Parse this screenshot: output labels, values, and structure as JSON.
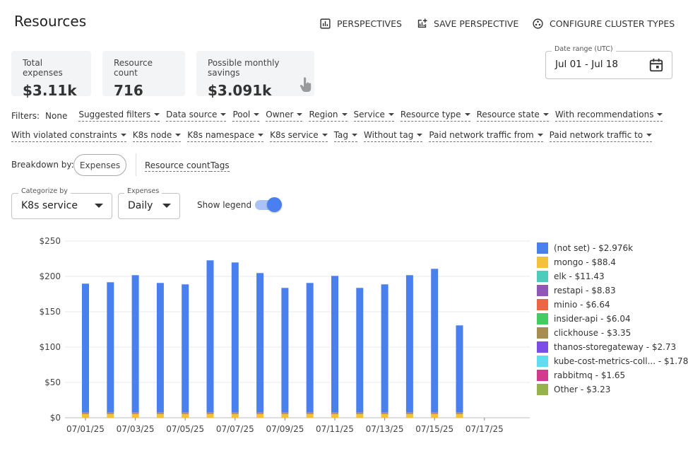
{
  "page": {
    "title": "Resources"
  },
  "toolbar": {
    "perspectives": "PERSPECTIVES",
    "save_perspective": "SAVE PERSPECTIVE",
    "configure_cluster_types": "CONFIGURE CLUSTER TYPES"
  },
  "summary_cards": [
    {
      "label": "Total expenses",
      "value": "$3.11k"
    },
    {
      "label": "Resource count",
      "value": "716"
    },
    {
      "label": "Possible monthly savings",
      "value": "$3.091k"
    }
  ],
  "date_range": {
    "label": "Date range (UTC)",
    "value": "Jul 01 - Jul 18"
  },
  "filters": {
    "label": "Filters:",
    "current": "None",
    "row1": [
      "Suggested filters",
      "Data source",
      "Pool",
      "Owner",
      "Region",
      "Service",
      "Resource type",
      "Resource state",
      "With recommendations"
    ],
    "row2": [
      "With violated constraints",
      "K8s node",
      "K8s namespace",
      "K8s service",
      "Tag",
      "Without tag",
      "Paid network traffic from",
      "Paid network traffic to"
    ]
  },
  "breakdown": {
    "label": "Breakdown by:",
    "selected": "Expenses",
    "options": [
      "Resource count",
      "Tags"
    ]
  },
  "categorize_by": {
    "label": "Categorize by",
    "value": "K8s service"
  },
  "expenses_period": {
    "label": "Expenses",
    "value": "Daily"
  },
  "show_legend": {
    "label": "Show legend",
    "enabled": true
  },
  "icons": {
    "perspectives": "bar-chart-icon",
    "save_perspective": "add-chart-icon",
    "configure_cluster_types": "cluster-icon",
    "date": "calendar-icon",
    "savings_hover": "pointer-hand-icon"
  },
  "chart_data": {
    "type": "bar",
    "stacked": true,
    "yticks": [
      "$250",
      "$200",
      "$150",
      "$100",
      "$50",
      "$0"
    ],
    "ylim": [
      0,
      250
    ],
    "xtick_labels": [
      "07/01/25",
      "07/03/25",
      "07/05/25",
      "07/07/25",
      "07/09/25",
      "07/11/25",
      "07/13/25",
      "07/15/25",
      "07/17/25"
    ],
    "categories": [
      "07/01/25",
      "07/02/25",
      "07/03/25",
      "07/04/25",
      "07/05/25",
      "07/06/25",
      "07/07/25",
      "07/08/25",
      "07/09/25",
      "07/10/25",
      "07/11/25",
      "07/12/25",
      "07/13/25",
      "07/14/25",
      "07/15/25",
      "07/16/25",
      "07/17/25",
      "07/18/25"
    ],
    "grid": true,
    "legend_position": "right",
    "series": [
      {
        "name": "(not set)",
        "total": "$2.976k",
        "color": "#4a7ff0",
        "values": [
          182,
          184,
          194,
          183,
          181,
          215,
          212,
          197,
          176,
          183,
          193,
          176,
          181,
          194,
          203,
          123,
          0,
          0
        ]
      },
      {
        "name": "mongo",
        "total": "$88.4",
        "color": "#f4c13c",
        "values": [
          5,
          5,
          5,
          5,
          5,
          5,
          5,
          5,
          5,
          5,
          5,
          5,
          5,
          5,
          5,
          5,
          0,
          0
        ]
      },
      {
        "name": "elk",
        "total": "$11.43",
        "color": "#4dcbbd",
        "values": [
          0.7,
          0.7,
          0.7,
          0.7,
          0.7,
          0.7,
          0.7,
          0.7,
          0.7,
          0.7,
          0.7,
          0.7,
          0.7,
          0.7,
          0.7,
          0.7,
          0,
          0
        ]
      },
      {
        "name": "restapi",
        "total": "$8.83",
        "color": "#9156b8",
        "values": [
          0.5,
          0.5,
          0.5,
          0.5,
          0.5,
          0.5,
          0.5,
          0.5,
          0.5,
          0.5,
          0.5,
          0.5,
          0.5,
          0.5,
          0.5,
          0.5,
          0,
          0
        ]
      },
      {
        "name": "minio",
        "total": "$6.64",
        "color": "#ee6544",
        "values": [
          0.4,
          0.4,
          0.4,
          0.4,
          0.4,
          0.4,
          0.4,
          0.4,
          0.4,
          0.4,
          0.4,
          0.4,
          0.4,
          0.4,
          0.4,
          0.4,
          0,
          0
        ]
      },
      {
        "name": "insider-api",
        "total": "$6.04",
        "color": "#45cc5e",
        "values": [
          0.35,
          0.35,
          0.35,
          0.35,
          0.35,
          0.35,
          0.35,
          0.35,
          0.35,
          0.35,
          0.35,
          0.35,
          0.35,
          0.35,
          0.35,
          0.35,
          0,
          0
        ]
      },
      {
        "name": "clickhouse",
        "total": "$3.35",
        "color": "#a78e4f",
        "values": [
          0.2,
          0.2,
          0.2,
          0.2,
          0.2,
          0.2,
          0.2,
          0.2,
          0.2,
          0.2,
          0.2,
          0.2,
          0.2,
          0.2,
          0.2,
          0.2,
          0,
          0
        ]
      },
      {
        "name": "thanos-storegateway",
        "total": "$2.73",
        "color": "#7c4ce6",
        "values": [
          0.16,
          0.16,
          0.16,
          0.16,
          0.16,
          0.16,
          0.16,
          0.16,
          0.16,
          0.16,
          0.16,
          0.16,
          0.16,
          0.16,
          0.16,
          0.16,
          0,
          0
        ]
      },
      {
        "name": "kube-cost-metrics-coll...",
        "total": "$1.78",
        "color": "#5ddff0",
        "values": [
          0.1,
          0.1,
          0.1,
          0.1,
          0.1,
          0.1,
          0.1,
          0.1,
          0.1,
          0.1,
          0.1,
          0.1,
          0.1,
          0.1,
          0.1,
          0.1,
          0,
          0
        ]
      },
      {
        "name": "rabbitmq",
        "total": "$1.65",
        "color": "#d23a8f",
        "values": [
          0.1,
          0.1,
          0.1,
          0.1,
          0.1,
          0.1,
          0.1,
          0.1,
          0.1,
          0.1,
          0.1,
          0.1,
          0.1,
          0.1,
          0.1,
          0.1,
          0,
          0
        ]
      },
      {
        "name": "Other",
        "total": "$3.23",
        "color": "#96b24a",
        "values": [
          0.2,
          0.2,
          0.2,
          0.2,
          0.2,
          0.2,
          0.2,
          0.2,
          0.2,
          0.2,
          0.2,
          0.2,
          0.2,
          0.2,
          0.2,
          0.2,
          0,
          0
        ]
      }
    ]
  }
}
